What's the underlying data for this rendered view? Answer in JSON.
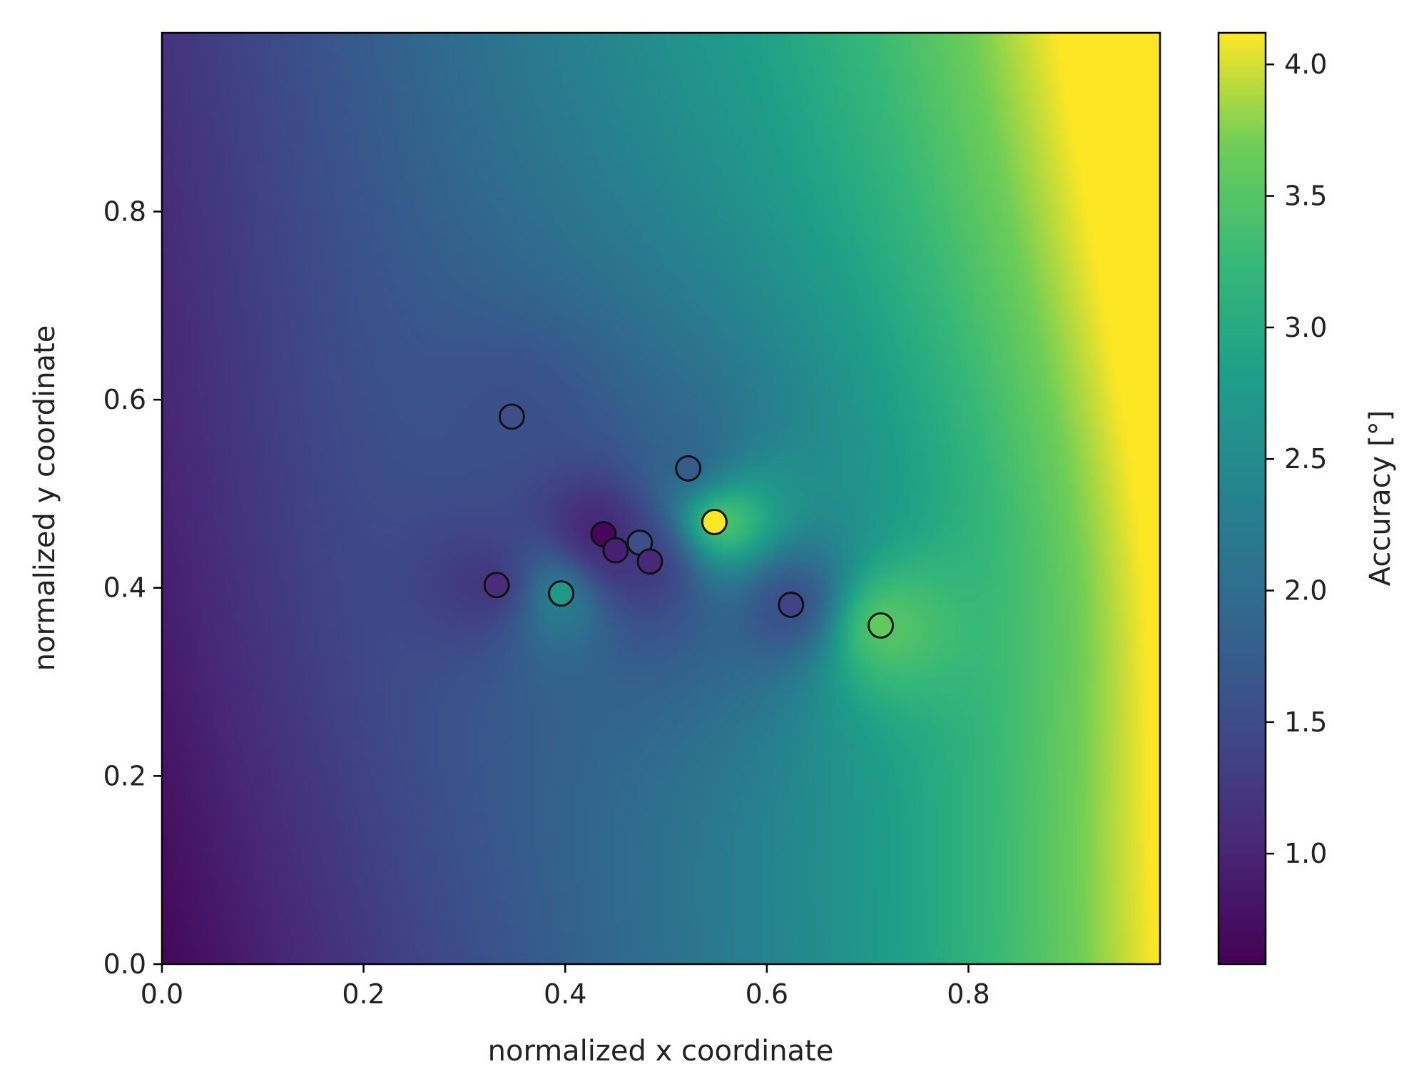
{
  "chart_data": {
    "type": "heatmap",
    "title": "",
    "xlabel": "normalized x coordinate",
    "ylabel": "normalized y coordinate",
    "xlim": [
      0.0,
      0.99
    ],
    "ylim": [
      0.0,
      0.99
    ],
    "x_ticks": [
      "0.0",
      "0.2",
      "0.4",
      "0.6",
      "0.8"
    ],
    "y_ticks": [
      "0.0",
      "0.2",
      "0.4",
      "0.6",
      "0.8"
    ],
    "x_tick_values": [
      0.0,
      0.2,
      0.4,
      0.6,
      0.8
    ],
    "y_tick_values": [
      0.0,
      0.2,
      0.4,
      0.6,
      0.8
    ],
    "grid": false,
    "colormap": "viridis",
    "colorbar": {
      "label": "Accuracy [°]",
      "range": [
        0.58,
        4.12
      ],
      "ticks": [
        "1.0",
        "1.5",
        "2.0",
        "2.5",
        "3.0",
        "3.5",
        "4.0"
      ],
      "tick_values": [
        1.0,
        1.5,
        2.0,
        2.5,
        3.0,
        3.5,
        4.0
      ],
      "placement": "right"
    },
    "points": [
      {
        "x": 0.347,
        "y": 0.582,
        "value": 1.55
      },
      {
        "x": 0.522,
        "y": 0.527,
        "value": 1.75
      },
      {
        "x": 0.548,
        "y": 0.47,
        "value": 4.12
      },
      {
        "x": 0.438,
        "y": 0.457,
        "value": 0.65
      },
      {
        "x": 0.474,
        "y": 0.448,
        "value": 1.55
      },
      {
        "x": 0.45,
        "y": 0.44,
        "value": 0.95
      },
      {
        "x": 0.484,
        "y": 0.428,
        "value": 1.05
      },
      {
        "x": 0.332,
        "y": 0.403,
        "value": 1.1
      },
      {
        "x": 0.396,
        "y": 0.394,
        "value": 2.7
      },
      {
        "x": 0.624,
        "y": 0.382,
        "value": 1.4
      },
      {
        "x": 0.713,
        "y": 0.36,
        "value": 3.6
      }
    ]
  }
}
